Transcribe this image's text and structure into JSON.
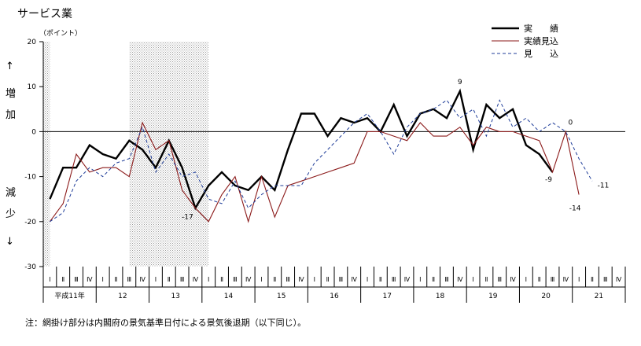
{
  "chart_data": {
    "type": "line",
    "title": "サービス業",
    "unit_label": "（ポイント）",
    "y_axis_side_labels": {
      "up_arrow": "↑",
      "increase": "増加",
      "decrease": "減少",
      "down_arrow": "↓"
    },
    "ylim": [
      -30,
      20
    ],
    "yticks": [
      20,
      10,
      0,
      -10,
      -20,
      -30
    ],
    "quarter_labels": [
      "Ⅰ",
      "Ⅱ",
      "Ⅲ",
      "Ⅳ"
    ],
    "year_labels": [
      "平成11年",
      "12",
      "13",
      "14",
      "15",
      "16",
      "17",
      "18",
      "19",
      "20",
      "21"
    ],
    "first_year": 11,
    "last_year": 21,
    "shaded_ranges": [
      [
        0,
        0.5
      ],
      [
        6.5,
        12.5
      ]
    ],
    "series": [
      {
        "name": "実　　績",
        "color": "#000000",
        "style": "solid-thick",
        "values": [
          -15,
          -8,
          -8,
          -3,
          -5,
          -6,
          -2,
          -4,
          -8,
          -2,
          -8,
          -17,
          -12,
          -9,
          -12,
          -13,
          -10,
          -13,
          -4,
          4,
          4,
          -1,
          3,
          2,
          3,
          0,
          6,
          -1,
          4,
          5,
          3,
          9,
          -4,
          6,
          3,
          5,
          -3,
          -5,
          -9,
          null,
          null,
          null,
          null,
          null
        ]
      },
      {
        "name": "実績見込",
        "color": "#8b1a1a",
        "style": "solid",
        "values": [
          -20,
          -16,
          -5,
          -9,
          -8,
          -8,
          -10,
          2,
          -4,
          -2,
          -13,
          -17,
          -20,
          -14,
          -10,
          -20,
          -10,
          -19,
          -12,
          -11,
          -10,
          -9,
          -8,
          -7,
          0,
          0,
          -1,
          -2,
          2,
          -1,
          -1,
          1,
          -3,
          1,
          0,
          0,
          -1,
          -2,
          -9,
          0,
          -14,
          null,
          null,
          null
        ]
      },
      {
        "name": "見　　込",
        "color": "#1f3d99",
        "style": "dashed",
        "values": [
          -20,
          -18,
          -11,
          -8,
          -10,
          -7,
          -6,
          1,
          -9,
          -5,
          -10,
          -9,
          -15,
          -16,
          -11,
          -17,
          -14,
          -12,
          -12,
          -12,
          -7,
          -4,
          -1,
          2,
          4,
          0,
          -5,
          1,
          4,
          5,
          7,
          3,
          5,
          -1,
          7,
          1,
          3,
          0,
          2,
          0,
          -6,
          -11,
          null,
          null
        ]
      }
    ],
    "data_labels": [
      {
        "series": 0,
        "index": 31,
        "text": "9",
        "dx": 0,
        "dy": -9
      },
      {
        "series": 0,
        "index": 11,
        "text": "-17",
        "dx": -10,
        "dy": 14
      },
      {
        "series": 0,
        "index": 38,
        "text": "-9",
        "dx": -5,
        "dy": 12
      },
      {
        "series": 1,
        "index": 39,
        "text": "0",
        "dx": 6,
        "dy": -9
      },
      {
        "series": 1,
        "index": 40,
        "text": "-14",
        "dx": -5,
        "dy": 20
      },
      {
        "series": 2,
        "index": 41,
        "text": "-11",
        "dx": 14,
        "dy": 8
      }
    ],
    "legend": "top-right"
  },
  "footnote": "注：網掛け部分は内閣府の景気基準日付による景気後退期（以下同じ）。"
}
